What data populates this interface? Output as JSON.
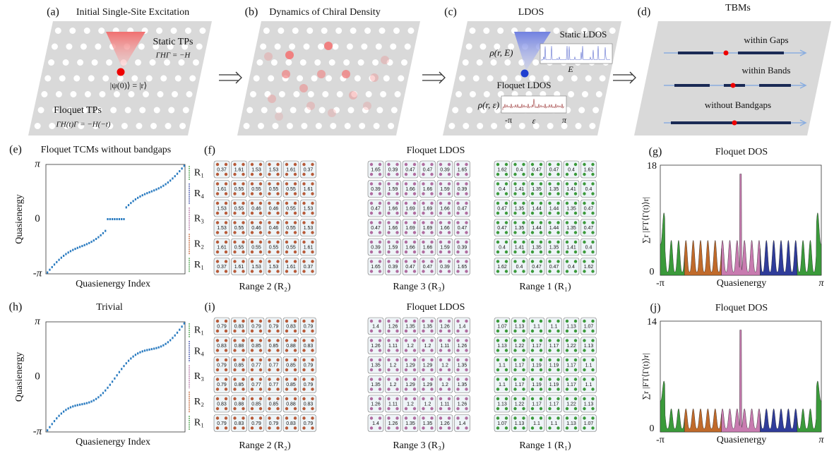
{
  "figure": {
    "a": {
      "label": "(a)",
      "title": "Initial Single-Site Excitation",
      "static": "Static TPs",
      "static_eq": "ΓHΓ = −H",
      "state": "|ψ(0)⟩ = |r⟩",
      "floquet": "Floquet TPs",
      "floquet_eq": "ΓH(t)Γ = −H(−t)"
    },
    "b": {
      "label": "(b)",
      "title": "Dynamics of Chiral Density"
    },
    "c": {
      "label": "(c)",
      "title": "LDOS",
      "rho_static": "ρ(r, E)",
      "static": "Static LDOS",
      "energy": "E",
      "floquet": "Floquet LDOS",
      "rho_floquet": "ρ(r, ε)",
      "left": "-π",
      "eps": "ε",
      "right": "π"
    },
    "d": {
      "label": "(d)",
      "title": "TBMs",
      "gaps": "within Gaps",
      "bands": "within Bands",
      "none": "without Bandgaps"
    },
    "e": {
      "label": "(e)",
      "title": "Floquet TCMs without bandgaps",
      "yticks": [
        "π",
        "0",
        "-π"
      ],
      "ylabel": "Quasienergy",
      "xlabel": "Quasienergy Index",
      "ranges": [
        "R₁",
        "R₄",
        "R₃",
        "R₂",
        "R₁"
      ]
    },
    "f": {
      "label": "(f)",
      "title": "Floquet LDOS",
      "grids": [
        {
          "caption": "Range 2 (R₂)",
          "cells": [
            [
              0.37,
              1.61,
              1.53,
              1.53,
              1.61,
              0.37
            ],
            [
              1.61,
              0.55,
              0.55,
              0.55,
              0.55,
              1.61
            ],
            [
              1.53,
              0.55,
              0.46,
              0.46,
              0.55,
              1.53
            ],
            [
              1.53,
              0.55,
              0.46,
              0.46,
              0.55,
              1.53
            ],
            [
              1.61,
              0.55,
              0.55,
              0.55,
              0.55,
              1.61
            ],
            [
              0.37,
              1.61,
              1.53,
              1.53,
              1.61,
              0.37
            ]
          ]
        },
        {
          "caption": "Range 3 (R₃)",
          "cells": [
            [
              1.65,
              0.39,
              0.47,
              0.47,
              0.39,
              1.65
            ],
            [
              0.39,
              1.59,
              1.66,
              1.66,
              1.59,
              0.39
            ],
            [
              0.47,
              1.66,
              1.69,
              1.69,
              1.66,
              0.47
            ],
            [
              0.47,
              1.66,
              1.69,
              1.69,
              1.66,
              0.47
            ],
            [
              0.39,
              1.59,
              1.66,
              1.66,
              1.59,
              0.39
            ],
            [
              1.65,
              0.39,
              0.47,
              0.47,
              0.39,
              1.65
            ]
          ]
        },
        {
          "caption": "Range 1 (R₁)",
          "cells": [
            [
              1.62,
              0.4,
              0.47,
              0.47,
              0.4,
              1.62
            ],
            [
              0.4,
              1.41,
              1.35,
              1.35,
              1.41,
              0.4
            ],
            [
              0.47,
              1.35,
              1.44,
              1.44,
              1.35,
              0.47
            ],
            [
              0.47,
              1.35,
              1.44,
              1.44,
              1.35,
              0.47
            ],
            [
              0.4,
              1.41,
              1.35,
              1.35,
              1.41,
              0.4
            ],
            [
              1.62,
              0.4,
              0.47,
              0.47,
              0.4,
              1.62
            ]
          ]
        }
      ]
    },
    "g": {
      "label": "(g)",
      "title": "Floquet DOS",
      "ytop": "18",
      "ybottom": "0",
      "xleft": "-π",
      "xright": "π",
      "xlabel": "Quasienergy",
      "ylabel": "∑r |FT⟨Γ(t)⟩r|"
    },
    "h": {
      "label": "(h)",
      "title": "Trivial",
      "yticks": [
        "π",
        "0",
        "-π"
      ],
      "ylabel": "Quasienergy",
      "xlabel": "Quasienergy Index",
      "ranges": [
        "R₁",
        "R₄",
        "R₃",
        "R₂",
        "R₁"
      ]
    },
    "i": {
      "label": "(i)",
      "title": "Floquet LDOS",
      "grids": [
        {
          "caption": "Range 2 (R₂)",
          "cells": [
            [
              0.79,
              0.83,
              0.79,
              0.79,
              0.83,
              0.79
            ],
            [
              0.83,
              0.88,
              0.85,
              0.85,
              0.88,
              0.83
            ],
            [
              0.79,
              0.85,
              0.77,
              0.77,
              0.85,
              0.79
            ],
            [
              0.79,
              0.85,
              0.77,
              0.77,
              0.85,
              0.79
            ],
            [
              0.83,
              0.88,
              0.85,
              0.85,
              0.88,
              0.83
            ],
            [
              0.79,
              0.83,
              0.79,
              0.79,
              0.83,
              0.79
            ]
          ]
        },
        {
          "caption": "Range 3 (R₃)",
          "cells": [
            [
              1.4,
              1.26,
              1.35,
              1.35,
              1.26,
              1.4
            ],
            [
              1.26,
              1.11,
              1.2,
              1.2,
              1.11,
              1.26
            ],
            [
              1.35,
              1.2,
              1.29,
              1.29,
              1.2,
              1.35
            ],
            [
              1.35,
              1.2,
              1.29,
              1.29,
              1.2,
              1.35
            ],
            [
              1.26,
              1.11,
              1.2,
              1.2,
              1.11,
              1.26
            ],
            [
              1.4,
              1.26,
              1.35,
              1.35,
              1.26,
              1.4
            ]
          ]
        },
        {
          "caption": "Range 1 (R₁)",
          "cells": [
            [
              1.07,
              1.13,
              1.1,
              1.1,
              1.13,
              1.07
            ],
            [
              1.13,
              1.22,
              1.17,
              1.17,
              1.22,
              1.13
            ],
            [
              1.1,
              1.17,
              1.19,
              1.19,
              1.17,
              1.1
            ],
            [
              1.1,
              1.17,
              1.19,
              1.19,
              1.17,
              1.1
            ],
            [
              1.13,
              1.22,
              1.17,
              1.17,
              1.22,
              1.13
            ],
            [
              1.07,
              1.13,
              1.1,
              1.1,
              1.13,
              1.07
            ]
          ]
        }
      ]
    },
    "j": {
      "label": "(j)",
      "title": "Floquet DOS",
      "ytop": "14",
      "ybottom": "0",
      "xleft": "-π",
      "xright": "π",
      "xlabel": "Quasienergy",
      "ylabel": "∑r |FT⟨Γ(t)⟩r|"
    }
  }
}
